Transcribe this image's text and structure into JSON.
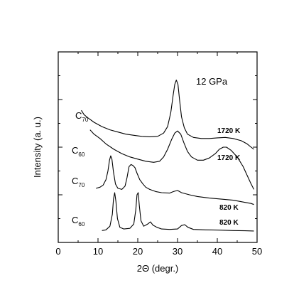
{
  "chart_data": {
    "type": "line",
    "xlabel": "2Θ (degr.)",
    "ylabel": "Intensity (a. u.)",
    "xlim": [
      0,
      50
    ],
    "xticks": [
      0,
      10,
      20,
      30,
      40,
      50
    ],
    "y_tick_labels_shown": false,
    "grid": false,
    "legend": "none",
    "annotation": "12 GPa",
    "series": [
      {
        "label_base": "C",
        "label_sub": "70",
        "temperature": "1720 K",
        "x": [
          5.8,
          6.5,
          7.5,
          9,
          11,
          13,
          15,
          17,
          19,
          21,
          23,
          25,
          26.5,
          27.5,
          28.3,
          28.9,
          29.3,
          29.7,
          30.1,
          30.5,
          31,
          31.7,
          32.5,
          34,
          36,
          38,
          40,
          42,
          44,
          46,
          47.5,
          48.5,
          49.2
        ],
        "y": [
          6.1,
          5.9,
          5.75,
          5.55,
          5.35,
          5.2,
          5.1,
          5.0,
          4.95,
          4.9,
          4.88,
          4.9,
          5.05,
          5.35,
          6.0,
          6.8,
          7.3,
          7.5,
          7.3,
          6.6,
          5.8,
          5.3,
          5.0,
          4.85,
          4.8,
          4.8,
          4.83,
          4.85,
          4.8,
          4.7,
          4.55,
          4.4,
          4.3
        ]
      },
      {
        "label_base": "C",
        "label_sub": "60",
        "temperature": "1720 K",
        "x": [
          8,
          9,
          10.5,
          12,
          14,
          16,
          18,
          20,
          22,
          24,
          25.5,
          26.5,
          27.5,
          28.5,
          29.3,
          30,
          30.8,
          31.6,
          32.5,
          33.5,
          35,
          36.5,
          38,
          39.5,
          40.5,
          41.5,
          42.3,
          43.5,
          45,
          46.5,
          47.5,
          48.5,
          49.2
        ],
        "y": [
          5.2,
          5.0,
          4.8,
          4.55,
          4.3,
          4.1,
          3.95,
          3.85,
          3.75,
          3.7,
          3.75,
          3.95,
          4.3,
          4.75,
          5.05,
          5.15,
          5.0,
          4.6,
          4.2,
          3.95,
          3.8,
          3.8,
          3.9,
          4.1,
          4.3,
          4.4,
          4.4,
          4.25,
          3.95,
          3.5,
          3.1,
          2.7,
          2.45
        ]
      },
      {
        "label_base": "C",
        "label_sub": "70",
        "temperature": "820 K",
        "x": [
          9.5,
          10.5,
          11.3,
          12,
          12.5,
          12.9,
          13.2,
          13.5,
          13.9,
          14.4,
          15,
          16,
          16.8,
          17.3,
          17.8,
          18.3,
          18.8,
          19.3,
          19.8,
          20.5,
          21.3,
          22,
          23,
          24.5,
          26,
          28,
          29,
          30,
          31,
          33,
          35,
          38,
          41,
          44,
          47,
          48.5,
          49.2
        ],
        "y": [
          2.5,
          2.55,
          2.65,
          2.9,
          3.3,
          3.8,
          4.0,
          3.85,
          3.25,
          2.7,
          2.5,
          2.45,
          2.6,
          3.0,
          3.5,
          3.6,
          3.55,
          3.45,
          3.2,
          2.9,
          2.7,
          2.55,
          2.45,
          2.35,
          2.3,
          2.28,
          2.35,
          2.4,
          2.3,
          2.2,
          2.12,
          2.05,
          2.0,
          1.95,
          1.85,
          1.8,
          1.75
        ]
      },
      {
        "label_base": "C",
        "label_sub": "60",
        "temperature": "820 K",
        "x": [
          11,
          12,
          13,
          13.6,
          13.9,
          14.2,
          14.5,
          14.9,
          15.5,
          16.5,
          18,
          19,
          19.5,
          19.8,
          20.1,
          20.4,
          20.8,
          21.5,
          22.5,
          23.2,
          23.8,
          24.8,
          26,
          28,
          30,
          31,
          31.8,
          32.6,
          34,
          37,
          40,
          44,
          47,
          49.2
        ],
        "y": [
          0.55,
          0.58,
          0.75,
          1.3,
          2.0,
          2.3,
          1.9,
          1.1,
          0.7,
          0.62,
          0.65,
          0.85,
          1.5,
          2.2,
          2.3,
          1.7,
          1.0,
          0.75,
          0.85,
          0.95,
          0.8,
          0.7,
          0.62,
          0.6,
          0.62,
          0.78,
          0.82,
          0.7,
          0.6,
          0.58,
          0.57,
          0.55,
          0.54,
          0.53
        ]
      }
    ]
  }
}
